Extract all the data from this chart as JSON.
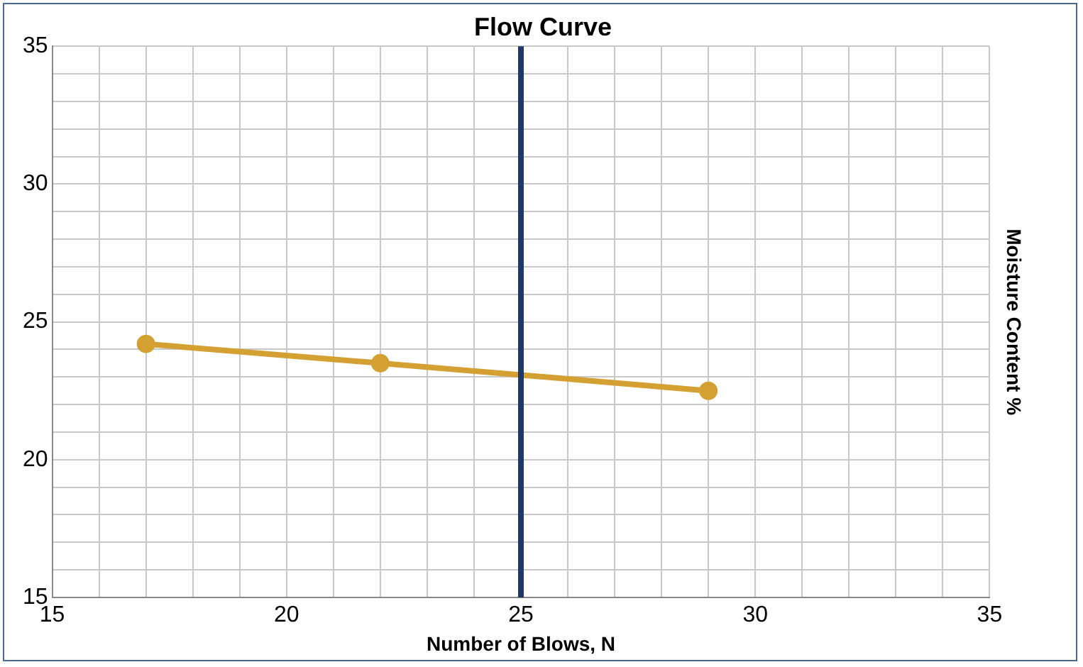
{
  "chart_data": {
    "type": "line",
    "title": "Flow Curve",
    "xlabel": "Number of Blows, N",
    "ylabel": "Moisture Content %",
    "x": [
      17,
      22,
      29
    ],
    "series": [
      {
        "color": "#d4a032",
        "values": [
          24.2,
          23.5,
          22.5
        ]
      }
    ],
    "xlim": [
      15,
      35
    ],
    "xticks": [
      15,
      {
        "value": 16,
        "label": null
      },
      {
        "value": 17,
        "label": null
      },
      {
        "value": 18,
        "label": null
      },
      {
        "value": 19,
        "label": null
      },
      20,
      {
        "value": 21,
        "label": null
      },
      {
        "value": 22,
        "label": null
      },
      {
        "value": 23,
        "label": null
      },
      {
        "value": 24,
        "label": null
      },
      25,
      {
        "value": 26,
        "label": null
      },
      {
        "value": 27,
        "label": null
      },
      {
        "value": 28,
        "label": null
      },
      {
        "value": 29,
        "label": null
      },
      30,
      {
        "value": 31,
        "label": null
      },
      {
        "value": 32,
        "label": null
      },
      {
        "value": 33,
        "label": null
      },
      {
        "value": 34,
        "label": null
      },
      35
    ],
    "ylim": [
      15,
      35
    ],
    "yticks": [
      15,
      {
        "value": 16,
        "label": null
      },
      {
        "value": 17,
        "label": null
      },
      {
        "value": 18,
        "label": null
      },
      {
        "value": 19,
        "label": null
      },
      20,
      {
        "value": 21,
        "label": null
      },
      {
        "value": 22,
        "label": null
      },
      {
        "value": 23,
        "label": null
      },
      {
        "value": 24,
        "label": null
      },
      25,
      {
        "value": 26,
        "label": null
      },
      {
        "value": 27,
        "label": null
      },
      {
        "value": 28,
        "label": null
      },
      {
        "value": 29,
        "label": null
      },
      30,
      {
        "value": 31,
        "label": null
      },
      {
        "value": 32,
        "label": null
      },
      {
        "value": 33,
        "label": null
      },
      {
        "value": 34,
        "label": null
      },
      35
    ],
    "ref_lines": [
      {
        "axis": "x",
        "value": 25,
        "color": "#1f3864"
      }
    ],
    "grid": true,
    "marker": "circle",
    "legend": false
  }
}
